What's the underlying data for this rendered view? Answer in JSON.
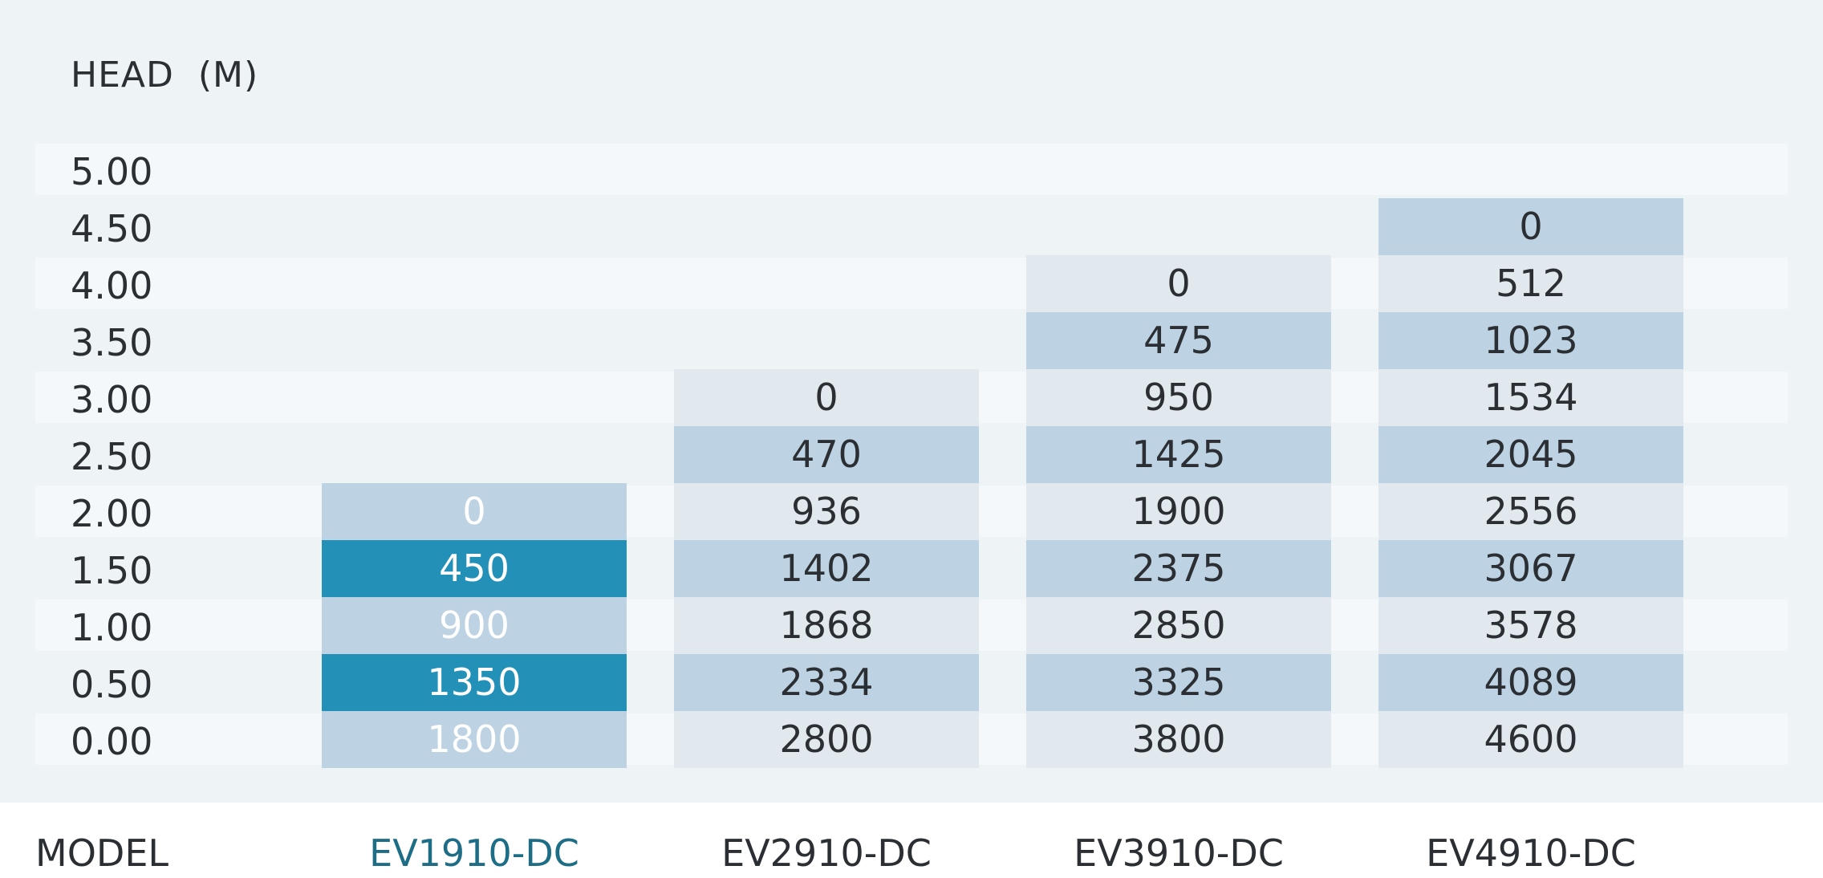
{
  "table": {
    "head_label": "HEAD  (M)",
    "model_label": "MODEL",
    "rows": [
      "5.00",
      "4.50",
      "4.00",
      "3.50",
      "3.00",
      "2.50",
      "2.00",
      "1.50",
      "1.00",
      "0.50",
      "0.00"
    ],
    "models": [
      {
        "name": "EV1910-DC",
        "active": true,
        "values": [
          "",
          "",
          "",
          "",
          "",
          "",
          "0",
          "450",
          "900",
          "1350",
          "1800"
        ]
      },
      {
        "name": "EV2910-DC",
        "active": false,
        "values": [
          "",
          "",
          "",
          "",
          "0",
          "470",
          "936",
          "1402",
          "1868",
          "2334",
          "2800"
        ]
      },
      {
        "name": "EV3910-DC",
        "active": false,
        "values": [
          "",
          "",
          "0",
          "475",
          "950",
          "1425",
          "1900",
          "2375",
          "2850",
          "3325",
          "3800"
        ]
      },
      {
        "name": "EV4910-DC",
        "active": false,
        "values": [
          "",
          "0",
          "512",
          "1023",
          "1534",
          "2045",
          "2556",
          "3067",
          "3578",
          "4089",
          "4600"
        ]
      }
    ]
  },
  "colors": {
    "panel_bg": "#eef3f6",
    "row_light": "#f5f8fb",
    "cell_pale": "#e1e8ee",
    "cell_blue": "#bdd2e2",
    "cell_highlight": "#2390b8",
    "active_model_text": "#1d6d86"
  }
}
